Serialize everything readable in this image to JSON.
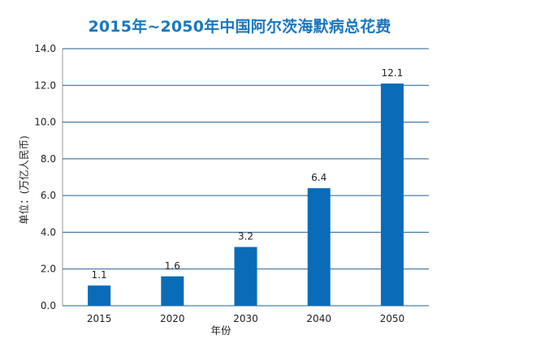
{
  "chart_data": {
    "type": "bar",
    "title": "2015年~2050年中国阿尔茨海默病总花费",
    "xlabel": "年份",
    "ylabel": "单位：(万亿人民币)",
    "categories": [
      "2015",
      "2020",
      "2030",
      "2040",
      "2050"
    ],
    "values": [
      1.1,
      1.6,
      3.2,
      6.4,
      12.1
    ],
    "data_labels": [
      "1.1",
      "1.6",
      "3.2",
      "6.4",
      "12.1"
    ],
    "yticks": [
      "0.0",
      "2.0",
      "4.0",
      "6.0",
      "8.0",
      "10.0",
      "12.0",
      "14.0"
    ],
    "ylim": [
      0,
      14
    ],
    "grid": true,
    "legend": "none",
    "colors": {
      "bar": "#0a6cb8",
      "grid": "#1f5f96",
      "title": "#1a77bf"
    }
  }
}
